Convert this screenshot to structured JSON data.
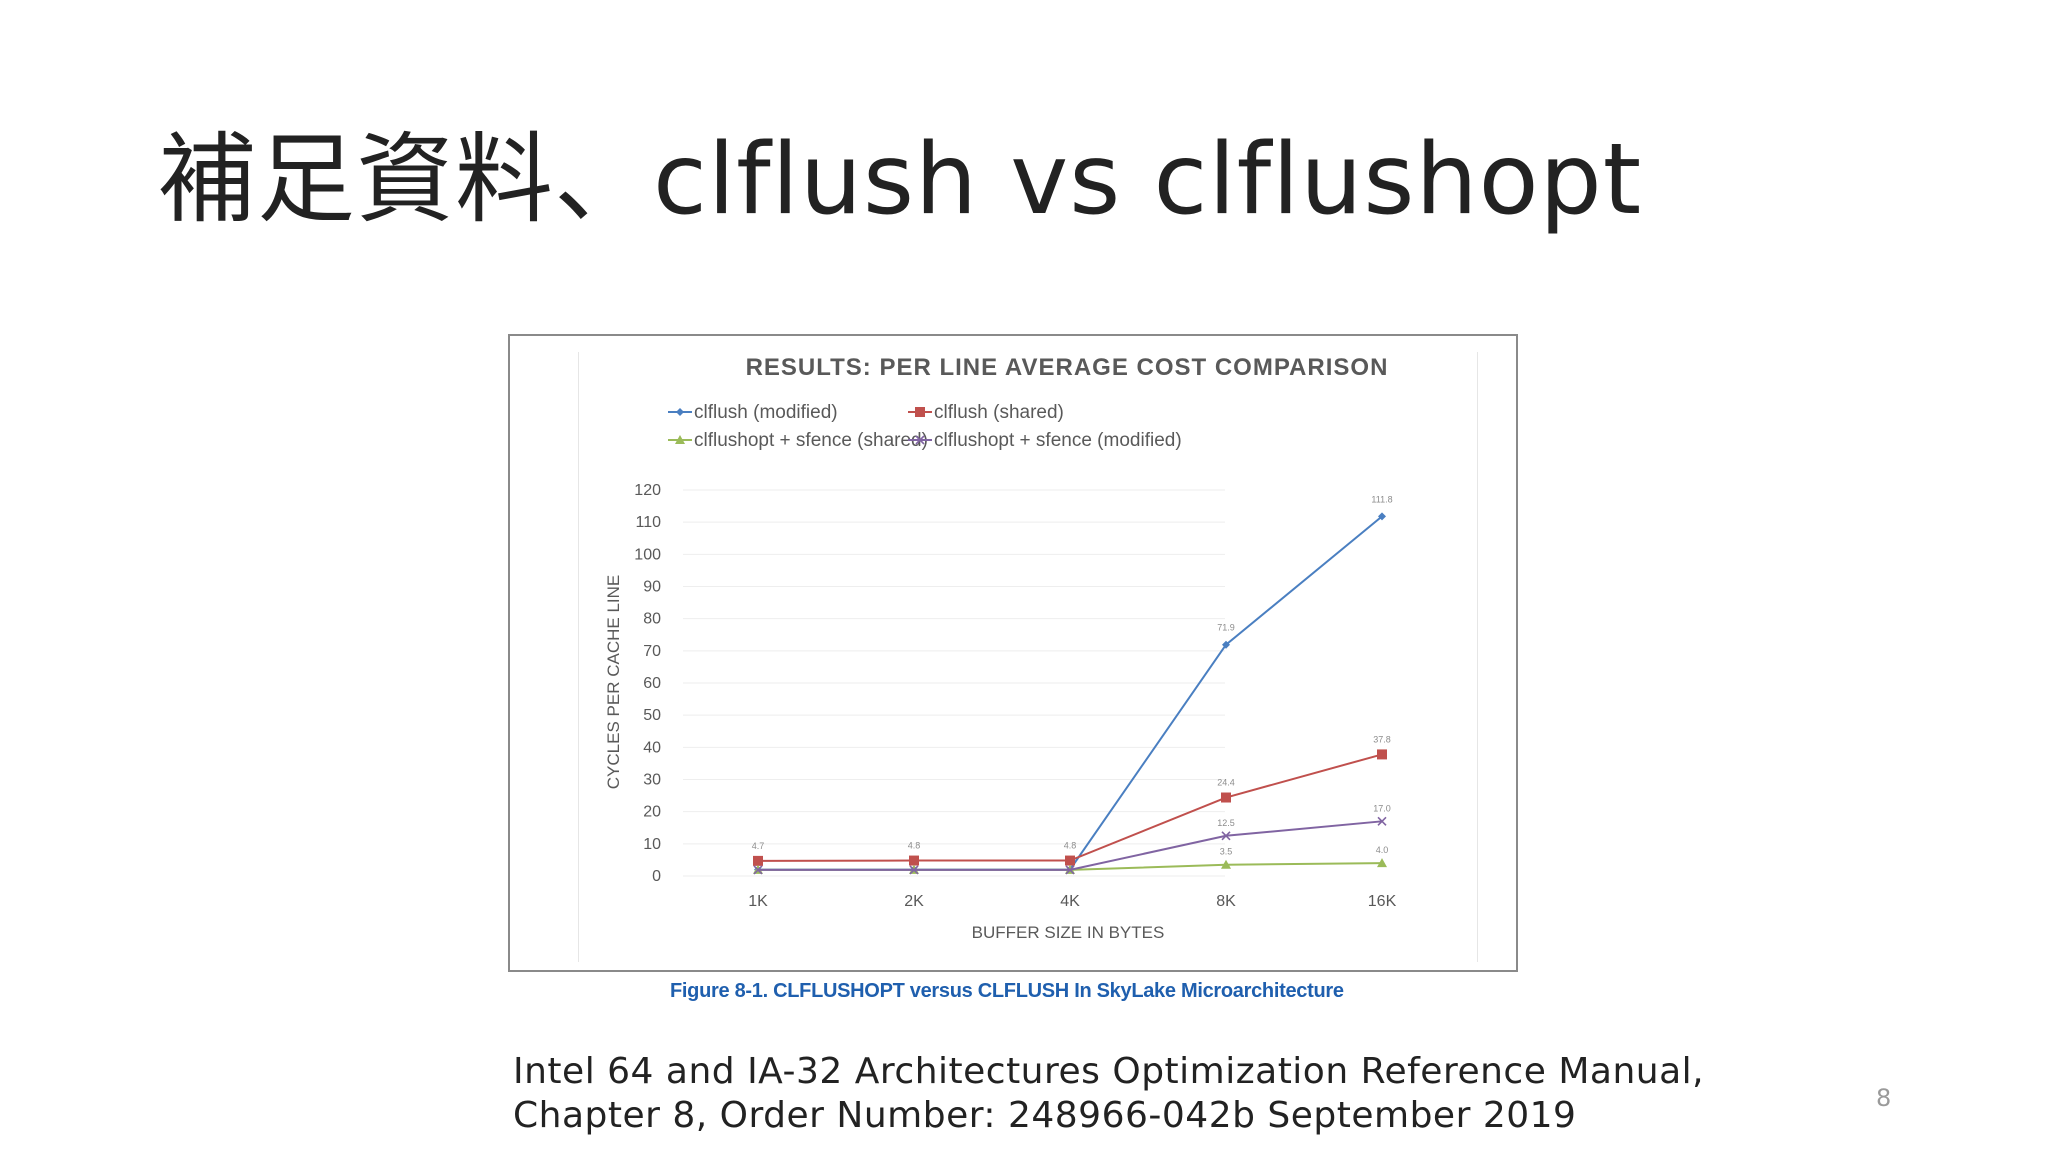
{
  "slide": {
    "title": "補足資料、clflush vs clflushopt",
    "figure_caption": "Figure 8-1.  CLFLUSHOPT versus CLFLUSH In SkyLake Microarchitecture",
    "reference_line1": "Intel 64 and IA-32 Architectures Optimization Reference Manual,",
    "reference_line2": "Chapter 8, Order Number: 248966-042b September 2019",
    "page_number": "8"
  },
  "chart_data": {
    "type": "line",
    "title": "RESULTS: PER LINE AVERAGE COST COMPARISON",
    "xlabel": "BUFFER SIZE IN BYTES",
    "ylabel": "CYCLES PER CACHE LINE",
    "categories": [
      "1K",
      "2K",
      "4K",
      "8K",
      "16K"
    ],
    "ylim": [
      0,
      120
    ],
    "yticks": [
      0,
      10,
      20,
      30,
      40,
      50,
      60,
      70,
      80,
      90,
      100,
      110,
      120
    ],
    "grid": true,
    "legend_position": "top",
    "series": [
      {
        "name": "clflush (modified)",
        "color": "#4a7fc1",
        "marker": "diamond",
        "values": [
          2.0,
          2.0,
          2.0,
          71.9,
          111.8
        ],
        "labels": [
          "",
          "",
          "",
          "71.9",
          "111.8"
        ]
      },
      {
        "name": "clflush (shared)",
        "color": "#c0504d",
        "marker": "square",
        "values": [
          4.7,
          4.8,
          4.8,
          24.4,
          37.8
        ],
        "labels": [
          "4.7",
          "4.8",
          "4.8",
          "24.4",
          "37.8"
        ]
      },
      {
        "name": "clflushopt + sfence (shared)",
        "color": "#9bbb59",
        "marker": "triangle",
        "values": [
          1.9,
          1.9,
          1.9,
          3.5,
          4.0
        ],
        "labels": [
          "",
          "",
          "",
          "3.5",
          "4.0"
        ]
      },
      {
        "name": "clflushopt + sfence (modified)",
        "color": "#8064a2",
        "marker": "x",
        "values": [
          1.9,
          1.9,
          1.9,
          12.5,
          17.0
        ],
        "labels": [
          "",
          "",
          "",
          "12.5",
          "17.0"
        ]
      }
    ]
  }
}
